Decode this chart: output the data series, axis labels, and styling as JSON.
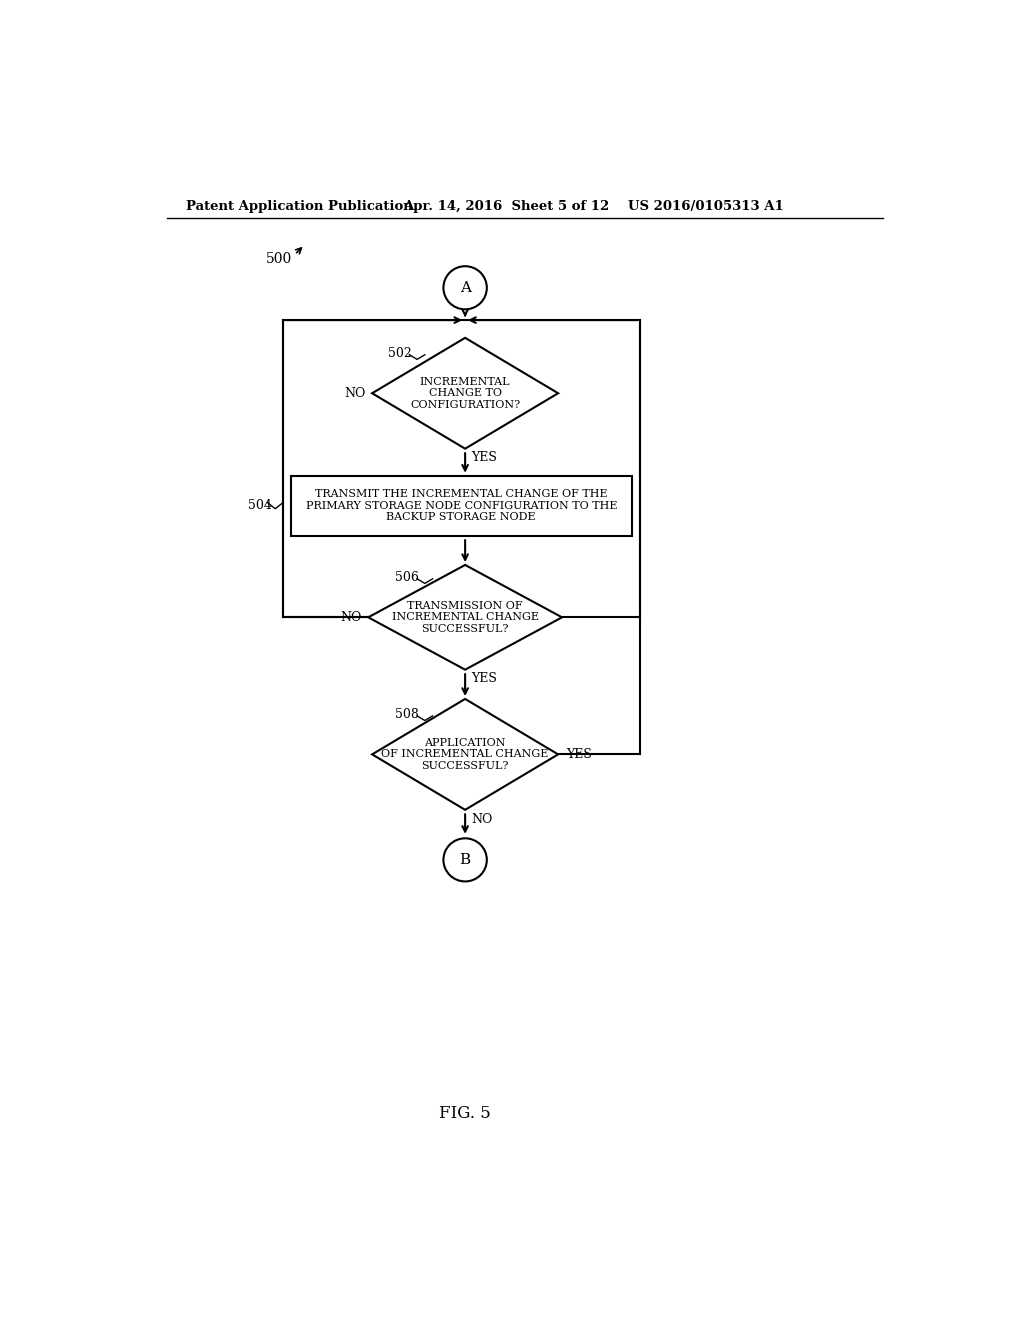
{
  "header_left": "Patent Application Publication",
  "header_mid": "Apr. 14, 2016  Sheet 5 of 12",
  "header_right": "US 2016/0105313 A1",
  "fig_label": "FIG. 5",
  "diagram_label": "500",
  "node_A_label": "A",
  "node_B_label": "B",
  "diamond1_label": "INCREMENTAL\nCHANGE TO\nCONFIGURATION?",
  "diamond1_num": "502",
  "diamond1_no": "NO",
  "diamond1_yes": "YES",
  "rect_label": "TRANSMIT THE INCREMENTAL CHANGE OF THE\nPRIMARY STORAGE NODE CONFIGURATION TO THE\nBACKUP STORAGE NODE",
  "rect_num": "504",
  "diamond2_label": "TRANSMISSION OF\nINCREMENTAL CHANGE\nSUCCESSFUL?",
  "diamond2_num": "506",
  "diamond2_no": "NO",
  "diamond2_yes": "YES",
  "diamond3_label": "APPLICATION\nOF INCREMENTAL CHANGE\nSUCCESSFUL?",
  "diamond3_num": "508",
  "diamond3_no": "NO",
  "diamond3_yes": "YES",
  "bg_color": "#ffffff",
  "line_color": "#000000",
  "text_color": "#000000"
}
